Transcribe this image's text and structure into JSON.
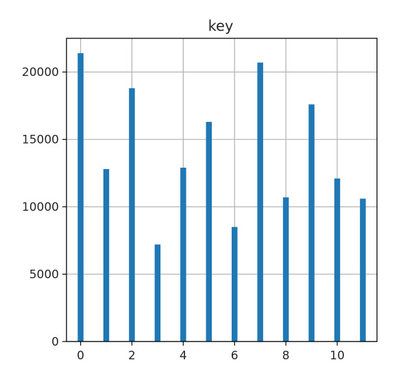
{
  "chart_data": {
    "type": "bar",
    "title": "key",
    "xlabel": "",
    "ylabel": "",
    "x": [
      0,
      1,
      2,
      3,
      4,
      5,
      6,
      7,
      8,
      9,
      10,
      11
    ],
    "values": [
      21400,
      12800,
      18800,
      7200,
      12900,
      16300,
      8500,
      20700,
      10700,
      17600,
      12100,
      10600
    ],
    "xlim": [
      -0.55,
      11.55
    ],
    "ylim": [
      0,
      22500
    ],
    "xticks": [
      0,
      2,
      4,
      6,
      8,
      10
    ],
    "yticks": [
      0,
      5000,
      10000,
      15000,
      20000
    ],
    "grid": true,
    "bar_color": "#1f77b4",
    "grid_color": "#b0b0b0",
    "axis_color": "#000000"
  }
}
